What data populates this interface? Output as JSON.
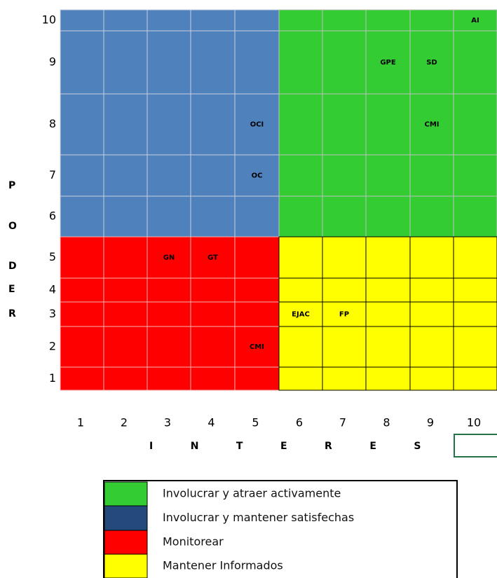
{
  "grid": {
    "x_title": "INTERES",
    "y_title": "PODER",
    "x_labels": [
      1,
      2,
      3,
      4,
      5,
      6,
      7,
      8,
      9,
      10
    ],
    "rows": [
      {
        "label": 10,
        "cells": [
          null,
          null,
          null,
          null,
          null,
          null,
          null,
          null,
          null,
          "AI"
        ]
      },
      {
        "label": 9,
        "cells": [
          null,
          null,
          null,
          null,
          null,
          null,
          null,
          "GPE",
          "SD",
          null
        ]
      },
      {
        "label": 8,
        "cells": [
          null,
          null,
          null,
          null,
          "OCI",
          null,
          null,
          null,
          "CMI",
          null
        ]
      },
      {
        "label": 7,
        "cells": [
          null,
          null,
          null,
          null,
          "OC",
          null,
          null,
          null,
          null,
          null
        ]
      },
      {
        "label": 6,
        "cells": [
          null,
          null,
          null,
          null,
          null,
          null,
          null,
          null,
          null,
          null
        ]
      },
      {
        "label": 5,
        "cells": [
          null,
          null,
          "GN",
          "GT",
          null,
          null,
          null,
          null,
          null,
          null
        ]
      },
      {
        "label": 4,
        "cells": [
          null,
          null,
          null,
          null,
          null,
          null,
          null,
          null,
          null,
          null
        ]
      },
      {
        "label": 3,
        "cells": [
          null,
          null,
          null,
          null,
          null,
          "EJAC",
          "FP",
          null,
          null,
          null
        ]
      },
      {
        "label": 2,
        "cells": [
          null,
          null,
          null,
          null,
          "CMI",
          null,
          null,
          null,
          null,
          null
        ]
      },
      {
        "label": 1,
        "cells": [
          null,
          null,
          null,
          null,
          null,
          null,
          null,
          null,
          null,
          null
        ]
      }
    ]
  },
  "legend": [
    {
      "label": "Involucrar y atraer activamente",
      "color": "#33cc33"
    },
    {
      "label": "Involucrar y mantener satisfechas",
      "color": "#244a7c"
    },
    {
      "label": "Monitorear",
      "color": "#ff0000"
    },
    {
      "label": "Mantener Informados",
      "color": "#ffff00"
    }
  ]
}
